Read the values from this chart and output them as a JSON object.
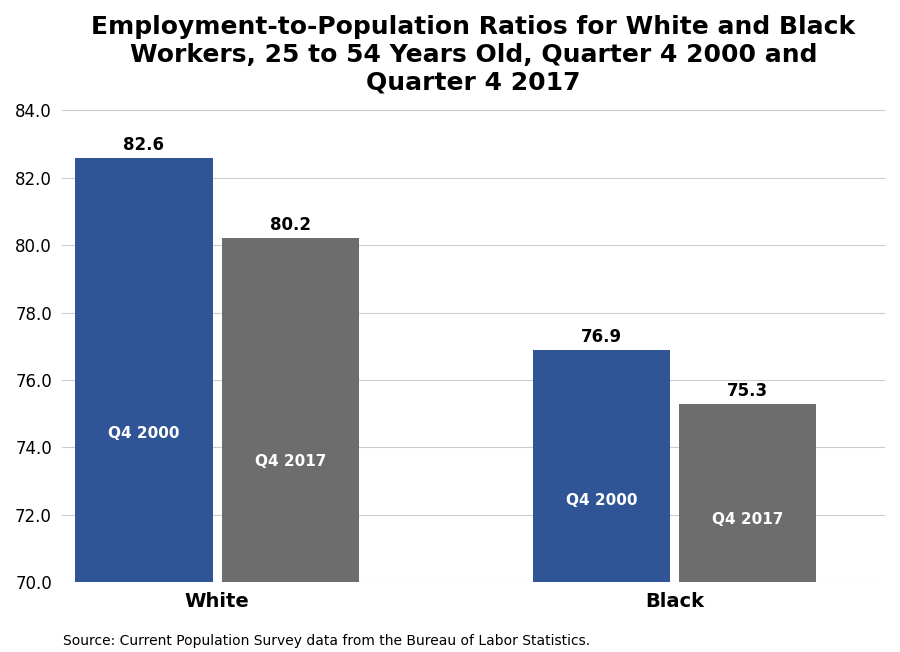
{
  "title": "Employment-to-Population Ratios for White and Black\nWorkers, 25 to 54 Years Old, Quarter 4 2000 and\nQuarter 4 2017",
  "categories": [
    "White",
    "Black"
  ],
  "q4_2000_values": [
    82.6,
    76.9
  ],
  "q4_2017_values": [
    80.2,
    75.3
  ],
  "bar_color_2000": "#2F5597",
  "bar_color_2017": "#6D6D6D",
  "ylim_min": 70.0,
  "ylim_max": 84.0,
  "yticks": [
    70.0,
    72.0,
    74.0,
    76.0,
    78.0,
    80.0,
    82.0,
    84.0
  ],
  "bar_width": 0.15,
  "group_positions": [
    0.22,
    0.72
  ],
  "label_2000": "Q4 2000",
  "label_2017": "Q4 2017",
  "source_text": "Source: Current Population Survey data from the Bureau of Labor Statistics.",
  "title_fontsize": 18,
  "axis_label_fontsize": 14,
  "tick_fontsize": 12,
  "source_fontsize": 10,
  "value_label_fontsize": 12,
  "inner_label_fontsize": 11,
  "background_color": "#ffffff",
  "grid_color": "#cccccc"
}
